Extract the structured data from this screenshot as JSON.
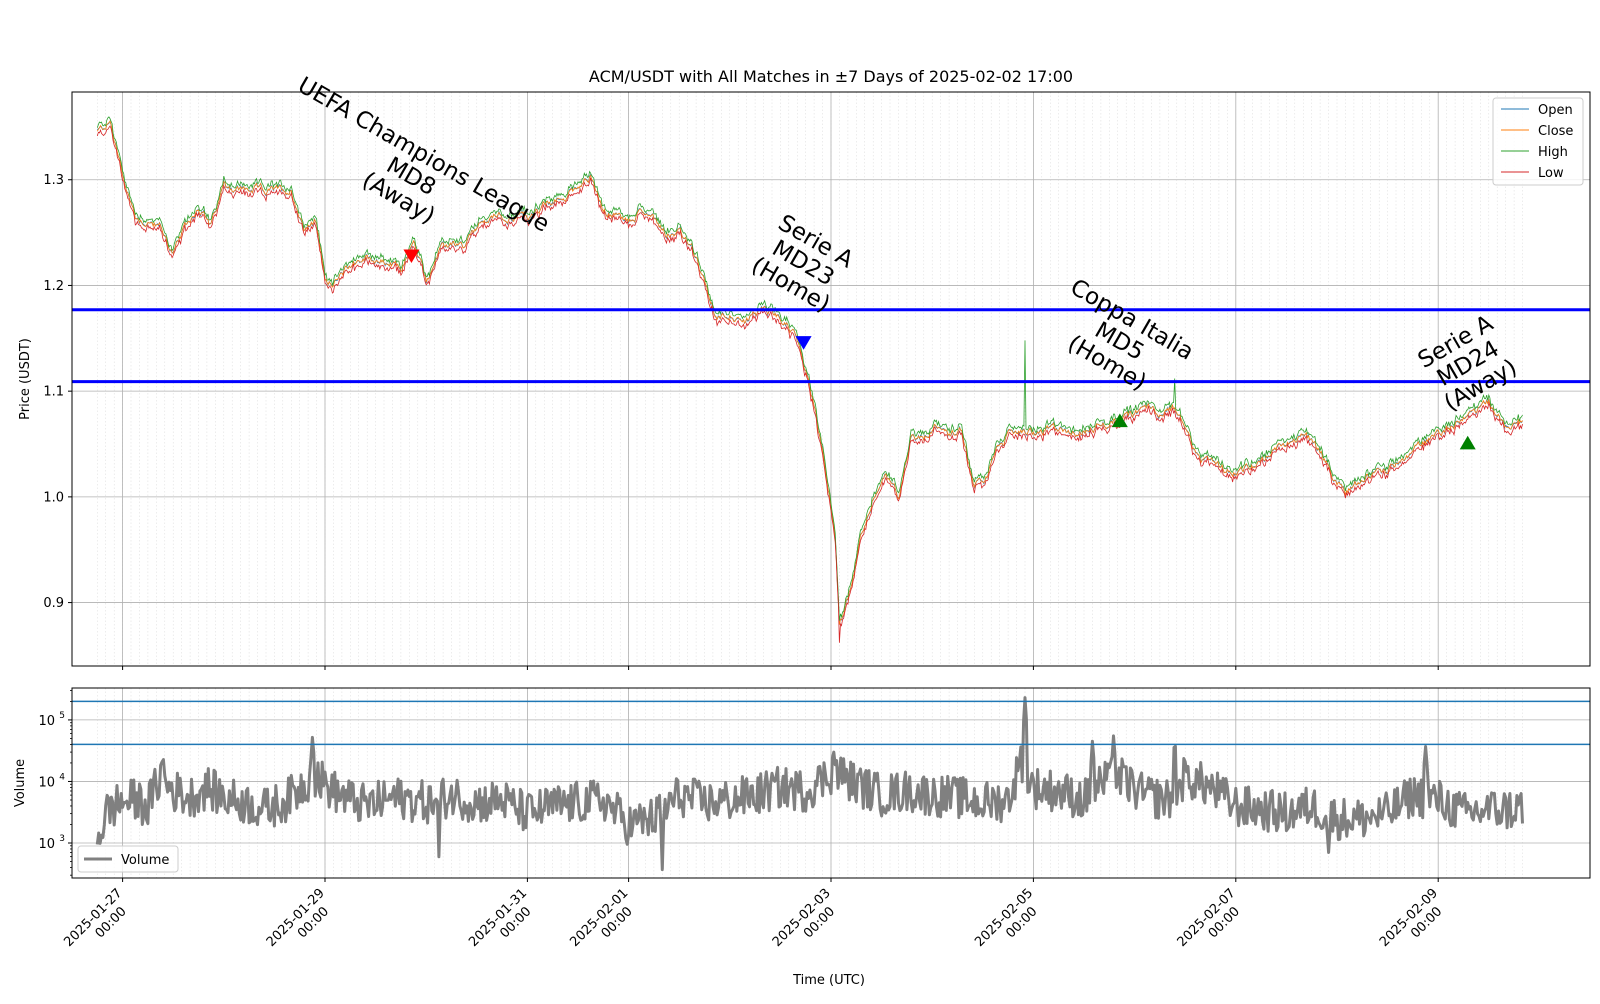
{
  "chart_data": {
    "type": "line",
    "title": "ACM/USDT with All Matches in ±7 Days of 2025-02-02 17:00",
    "xlabel": "Time (UTC)",
    "x_range": [
      "2025-01-26 12:00",
      "2025-02-10 12:00"
    ],
    "x_ticks": [
      {
        "date": "2025-01-27",
        "label1": "2025-01-27",
        "label2": "00:00"
      },
      {
        "date": "2025-01-29",
        "label1": "2025-01-29",
        "label2": "00:00"
      },
      {
        "date": "2025-01-31",
        "label1": "2025-01-31",
        "label2": "00:00"
      },
      {
        "date": "2025-02-01",
        "label1": "2025-02-01",
        "label2": "00:00"
      },
      {
        "date": "2025-02-03",
        "label1": "2025-02-03",
        "label2": "00:00"
      },
      {
        "date": "2025-02-05",
        "label1": "2025-02-05",
        "label2": "00:00"
      },
      {
        "date": "2025-02-07",
        "label1": "2025-02-07",
        "label2": "00:00"
      },
      {
        "date": "2025-02-09",
        "label1": "2025-02-09",
        "label2": "00:00"
      }
    ],
    "price_panel": {
      "ylabel": "Price (USDT)",
      "ylim": [
        0.84,
        1.383
      ],
      "yticks": [
        0.9,
        1.0,
        1.1,
        1.2,
        1.3
      ],
      "ytick_labels": [
        "0.9",
        "1.0",
        "1.1",
        "1.2",
        "1.3"
      ],
      "grid": true,
      "legend": "top-right",
      "series": [
        {
          "name": "Open",
          "color": "#1f77b4"
        },
        {
          "name": "Close",
          "color": "#ff7f0e"
        },
        {
          "name": "High",
          "color": "#2ca02c"
        },
        {
          "name": "Low",
          "color": "#d62728"
        }
      ],
      "close_points": [
        [
          "2025-01-26 18:00",
          1.345
        ],
        [
          "2025-01-26 21:00",
          1.355
        ],
        [
          "2025-01-27 00:00",
          1.305
        ],
        [
          "2025-01-27 03:00",
          1.265
        ],
        [
          "2025-01-27 06:00",
          1.26
        ],
        [
          "2025-01-27 09:00",
          1.255
        ],
        [
          "2025-01-27 12:00",
          1.23
        ],
        [
          "2025-01-27 15:00",
          1.255
        ],
        [
          "2025-01-27 18:00",
          1.275
        ],
        [
          "2025-01-27 21:00",
          1.255
        ],
        [
          "2025-01-28 00:00",
          1.295
        ],
        [
          "2025-01-28 04:00",
          1.29
        ],
        [
          "2025-01-28 08:00",
          1.29
        ],
        [
          "2025-01-28 12:00",
          1.29
        ],
        [
          "2025-01-28 16:00",
          1.29
        ],
        [
          "2025-01-28 19:00",
          1.255
        ],
        [
          "2025-01-28 22:00",
          1.26
        ],
        [
          "2025-01-29 00:00",
          1.205
        ],
        [
          "2025-01-29 03:00",
          1.205
        ],
        [
          "2025-01-29 06:00",
          1.22
        ],
        [
          "2025-01-29 09:00",
          1.225
        ],
        [
          "2025-01-29 12:00",
          1.225
        ],
        [
          "2025-01-29 15:00",
          1.22
        ],
        [
          "2025-01-29 18:00",
          1.215
        ],
        [
          "2025-01-29 21:00",
          1.24
        ],
        [
          "2025-01-30 00:00",
          1.205
        ],
        [
          "2025-01-30 03:00",
          1.23
        ],
        [
          "2025-01-30 06:00",
          1.24
        ],
        [
          "2025-01-30 09:00",
          1.235
        ],
        [
          "2025-01-30 12:00",
          1.255
        ],
        [
          "2025-01-30 16:00",
          1.265
        ],
        [
          "2025-01-30 20:00",
          1.265
        ],
        [
          "2025-01-31 00:00",
          1.265
        ],
        [
          "2025-01-31 04:00",
          1.275
        ],
        [
          "2025-01-31 08:00",
          1.28
        ],
        [
          "2025-01-31 12:00",
          1.295
        ],
        [
          "2025-01-31 15:00",
          1.305
        ],
        [
          "2025-01-31 18:00",
          1.27
        ],
        [
          "2025-01-31 21:00",
          1.265
        ],
        [
          "2025-02-01 00:00",
          1.26
        ],
        [
          "2025-02-01 03:00",
          1.27
        ],
        [
          "2025-02-01 06:00",
          1.265
        ],
        [
          "2025-02-01 09:00",
          1.25
        ],
        [
          "2025-02-01 12:00",
          1.25
        ],
        [
          "2025-02-01 15:00",
          1.235
        ],
        [
          "2025-02-01 18:00",
          1.2
        ],
        [
          "2025-02-01 21:00",
          1.17
        ],
        [
          "2025-02-02 00:00",
          1.175
        ],
        [
          "2025-02-02 03:00",
          1.16
        ],
        [
          "2025-02-02 06:00",
          1.175
        ],
        [
          "2025-02-02 09:00",
          1.175
        ],
        [
          "2025-02-02 12:00",
          1.17
        ],
        [
          "2025-02-02 15:00",
          1.155
        ],
        [
          "2025-02-02 17:00",
          1.135
        ],
        [
          "2025-02-02 20:00",
          1.085
        ],
        [
          "2025-02-02 23:00",
          1.02
        ],
        [
          "2025-02-03 01:00",
          0.96
        ],
        [
          "2025-02-03 02:00",
          0.88
        ],
        [
          "2025-02-03 04:00",
          0.905
        ],
        [
          "2025-02-03 07:00",
          0.96
        ],
        [
          "2025-02-03 10:00",
          1.0
        ],
        [
          "2025-02-03 13:00",
          1.02
        ],
        [
          "2025-02-03 16:00",
          1.0
        ],
        [
          "2025-02-03 19:00",
          1.06
        ],
        [
          "2025-02-03 22:00",
          1.055
        ],
        [
          "2025-02-04 01:00",
          1.07
        ],
        [
          "2025-02-04 04:00",
          1.06
        ],
        [
          "2025-02-04 07:00",
          1.065
        ],
        [
          "2025-02-04 10:00",
          1.01
        ],
        [
          "2025-02-04 13:00",
          1.02
        ],
        [
          "2025-02-04 16:00",
          1.05
        ],
        [
          "2025-02-04 19:00",
          1.06
        ],
        [
          "2025-02-04 21:00",
          1.065
        ],
        [
          "2025-02-04 22:00",
          1.06
        ],
        [
          "2025-02-05 01:00",
          1.06
        ],
        [
          "2025-02-05 06:00",
          1.065
        ],
        [
          "2025-02-05 12:00",
          1.06
        ],
        [
          "2025-02-05 16:00",
          1.07
        ],
        [
          "2025-02-05 18:00",
          1.07
        ],
        [
          "2025-02-05 21:00",
          1.075
        ],
        [
          "2025-02-06 00:00",
          1.08
        ],
        [
          "2025-02-06 03:00",
          1.085
        ],
        [
          "2025-02-06 06:00",
          1.08
        ],
        [
          "2025-02-06 09:00",
          1.085
        ],
        [
          "2025-02-06 12:00",
          1.07
        ],
        [
          "2025-02-06 15:00",
          1.035
        ],
        [
          "2025-02-06 18:00",
          1.03
        ],
        [
          "2025-02-06 21:00",
          1.025
        ],
        [
          "2025-02-07 00:00",
          1.025
        ],
        [
          "2025-02-07 04:00",
          1.03
        ],
        [
          "2025-02-07 08:00",
          1.04
        ],
        [
          "2025-02-07 12:00",
          1.05
        ],
        [
          "2025-02-07 16:00",
          1.06
        ],
        [
          "2025-02-07 20:00",
          1.045
        ],
        [
          "2025-02-07 23:00",
          1.02
        ],
        [
          "2025-02-08 02:00",
          1.005
        ],
        [
          "2025-02-08 05:00",
          1.015
        ],
        [
          "2025-02-08 08:00",
          1.02
        ],
        [
          "2025-02-08 12:00",
          1.025
        ],
        [
          "2025-02-08 16:00",
          1.035
        ],
        [
          "2025-02-08 20:00",
          1.05
        ],
        [
          "2025-02-09 00:00",
          1.06
        ],
        [
          "2025-02-09 04:00",
          1.07
        ],
        [
          "2025-02-09 08:00",
          1.08
        ],
        [
          "2025-02-09 12:00",
          1.09
        ],
        [
          "2025-02-09 16:00",
          1.065
        ],
        [
          "2025-02-09 20:00",
          1.07
        ]
      ],
      "horizontal_lines": [
        {
          "y": 1.177,
          "color": "#0000ff"
        },
        {
          "y": 1.109,
          "color": "#0000ff"
        }
      ],
      "markers": [
        {
          "x": "2025-01-29 20:30",
          "y": 1.228,
          "shape": "triangle-down",
          "color": "#ff0000"
        },
        {
          "x": "2025-02-02 17:30",
          "y": 1.146,
          "shape": "triangle-down",
          "color": "#0000ff"
        },
        {
          "x": "2025-02-05 20:30",
          "y": 1.072,
          "shape": "triangle-up",
          "color": "#008000"
        },
        {
          "x": "2025-02-09 07:00",
          "y": 1.051,
          "shape": "triangle-up",
          "color": "#008000"
        }
      ],
      "annotations": [
        {
          "x": "2025-01-29 20:30",
          "y": 1.228,
          "lines": [
            "UEFA Champions League",
            "MD8",
            "(Away)"
          ],
          "angle": 30
        },
        {
          "x": "2025-02-02 17:30",
          "y": 1.146,
          "lines": [
            "Serie A",
            "MD23",
            "(Home)"
          ],
          "angle": 30
        },
        {
          "x": "2025-02-05 20:30",
          "y": 1.072,
          "lines": [
            "Coppa Italia",
            "MD5",
            "(Home)"
          ],
          "angle": 30
        },
        {
          "x": "2025-02-09 07:00",
          "y": 1.051,
          "lines": [
            "Serie A",
            "MD24",
            "(Away)"
          ],
          "angle": -30
        }
      ]
    },
    "volume_panel": {
      "ylabel": "Volume",
      "scale": "log",
      "ylim": [
        270,
        330000
      ],
      "yticks": [
        1000,
        10000,
        100000
      ],
      "ytick_labels": [
        {
          "base": "10",
          "exp": "3"
        },
        {
          "base": "10",
          "exp": "4"
        },
        {
          "base": "10",
          "exp": "5"
        }
      ],
      "legend": "bottom-left",
      "series_name": "Volume",
      "color": "#808080",
      "horizontal_lines": [
        200000,
        40000
      ],
      "points": [
        [
          "2025-01-26 18:00",
          1000
        ],
        [
          "2025-01-26 20:00",
          3000
        ],
        [
          "2025-01-26 23:00",
          4500
        ],
        [
          "2025-01-27 03:00",
          5000
        ],
        [
          "2025-01-27 06:00",
          4000
        ],
        [
          "2025-01-27 09:00",
          12000
        ],
        [
          "2025-01-27 12:00",
          7000
        ],
        [
          "2025-01-27 16:00",
          5500
        ],
        [
          "2025-01-27 20:00",
          8000
        ],
        [
          "2025-01-28 00:00",
          5500
        ],
        [
          "2025-01-28 05:00",
          4500
        ],
        [
          "2025-01-28 10:00",
          3500
        ],
        [
          "2025-01-28 15:00",
          5000
        ],
        [
          "2025-01-28 19:00",
          9000
        ],
        [
          "2025-01-28 22:00",
          12000
        ],
        [
          "2025-01-29 02:00",
          7000
        ],
        [
          "2025-01-29 06:00",
          5000
        ],
        [
          "2025-01-29 10:00",
          4000
        ],
        [
          "2025-01-29 16:00",
          5500
        ],
        [
          "2025-01-29 20:00",
          5000
        ],
        [
          "2025-01-30 01:00",
          4500
        ],
        [
          "2025-01-30 06:00",
          6000
        ],
        [
          "2025-01-30 12:00",
          4500
        ],
        [
          "2025-01-30 18:00",
          5000
        ],
        [
          "2025-01-31 00:00",
          3000
        ],
        [
          "2025-01-31 06:00",
          4000
        ],
        [
          "2025-01-31 12:00",
          4500
        ],
        [
          "2025-01-31 18:00",
          5000
        ],
        [
          "2025-02-01 00:00",
          2000
        ],
        [
          "2025-02-01 06:00",
          2500
        ],
        [
          "2025-02-01 12:00",
          6000
        ],
        [
          "2025-02-01 18:00",
          4500
        ],
        [
          "2025-02-02 00:00",
          5000
        ],
        [
          "2025-02-02 06:00",
          6000
        ],
        [
          "2025-02-02 12:00",
          8000
        ],
        [
          "2025-02-02 18:00",
          7000
        ],
        [
          "2025-02-03 01:00",
          15000
        ],
        [
          "2025-02-03 06:00",
          9000
        ],
        [
          "2025-02-03 12:00",
          6000
        ],
        [
          "2025-02-03 18:00",
          7000
        ],
        [
          "2025-02-04 00:00",
          6000
        ],
        [
          "2025-02-04 06:00",
          5500
        ],
        [
          "2025-02-04 12:00",
          4500
        ],
        [
          "2025-02-04 18:00",
          5000
        ],
        [
          "2025-02-04 21:00",
          20000
        ],
        [
          "2025-02-04 22:00",
          15000
        ],
        [
          "2025-02-05 00:00",
          8000
        ],
        [
          "2025-02-05 06:00",
          7000
        ],
        [
          "2025-02-05 12:00",
          5000
        ],
        [
          "2025-02-05 16:00",
          9000
        ],
        [
          "2025-02-05 21:00",
          11000
        ],
        [
          "2025-02-06 02:00",
          6000
        ],
        [
          "2025-02-06 08:00",
          5000
        ],
        [
          "2025-02-06 12:00",
          12000
        ],
        [
          "2025-02-06 18:00",
          8000
        ],
        [
          "2025-02-07 00:00",
          4000
        ],
        [
          "2025-02-07 06:00",
          3500
        ],
        [
          "2025-02-07 12:00",
          3000
        ],
        [
          "2025-02-07 18:00",
          4000
        ],
        [
          "2025-02-08 00:00",
          2500
        ],
        [
          "2025-02-08 06:00",
          2500
        ],
        [
          "2025-02-08 12:00",
          3000
        ],
        [
          "2025-02-08 18:00",
          6000
        ],
        [
          "2025-02-09 00:00",
          5000
        ],
        [
          "2025-02-09 06:00",
          3000
        ],
        [
          "2025-02-09 12:00",
          3500
        ],
        [
          "2025-02-09 18:00",
          3500
        ],
        [
          "2025-02-09 20:00",
          4000
        ]
      ],
      "spikes": [
        [
          "2025-01-27 09:30",
          35000
        ],
        [
          "2025-01-28 21:00",
          52000
        ],
        [
          "2025-01-30 03:00",
          600
        ],
        [
          "2025-02-01 08:00",
          370
        ],
        [
          "2025-02-03 00:30",
          48000
        ],
        [
          "2025-02-04 22:00",
          230000
        ],
        [
          "2025-02-05 14:00",
          45000
        ],
        [
          "2025-02-05 19:00",
          55000
        ],
        [
          "2025-02-06 09:30",
          75000
        ],
        [
          "2025-02-07 22:00",
          700
        ],
        [
          "2025-02-08 21:00",
          37000
        ]
      ]
    }
  }
}
